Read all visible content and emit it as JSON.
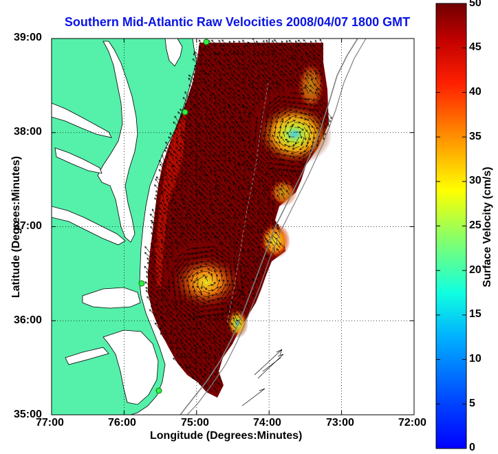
{
  "title": "Southern Mid-Atlantic Raw Velocities 2008/04/07 1800 GMT",
  "x_axis": {
    "label": "Longitude (Degrees:Minutes)",
    "ticks": [
      "77:00",
      "76:00",
      "75:00",
      "74:00",
      "73:00",
      "72:00"
    ]
  },
  "y_axis": {
    "label": "Latitude (Degrees:Minutes)",
    "ticks": [
      "39:00",
      "38:00",
      "37:00",
      "36:00",
      "35:00"
    ]
  },
  "colorbar": {
    "label": "Surface Velocity (cm/s)",
    "ticks": [
      "50",
      "45",
      "40",
      "35",
      "30",
      "25",
      "20",
      "15",
      "10",
      "5",
      "0"
    ],
    "range": [
      0,
      50
    ],
    "colormap": "jet"
  },
  "colors": {
    "land": "#55f0aa",
    "water": "#ffffff",
    "title": "#0a14e6",
    "current_high": "#7a0000",
    "current_mid": "#e0d020",
    "current_low": "#30d0e0",
    "stations": "#33ee44"
  },
  "map": {
    "lon_range": [
      "77:00 W",
      "72:00 W"
    ],
    "lat_range": [
      "35:00 N",
      "39:00 N"
    ],
    "grid": "dotted",
    "station_count": 4
  }
}
